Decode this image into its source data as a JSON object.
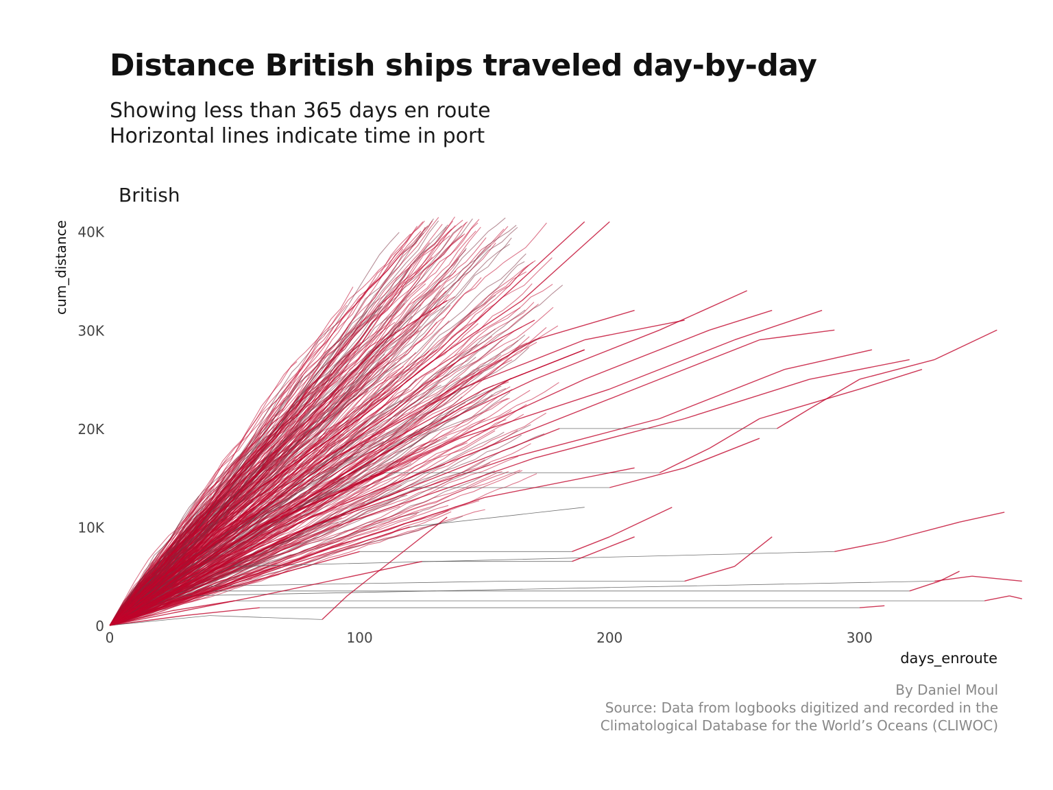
{
  "title": "Distance British ships traveled day-by-day",
  "subtitle": [
    "Showing less than 365 days en route",
    "Horizontal lines indicate time in port"
  ],
  "facet_label": "British",
  "caption": [
    "By Daniel Moul",
    "Source: Data from logbooks digitized and recorded in the",
    "Climatological Database for the World’s Oceans (CLIWOC)"
  ],
  "colors": {
    "line": "#c0042a",
    "port_line": "#555555",
    "axis_text": "#444444"
  },
  "chart_data": {
    "type": "line",
    "xlabel": "days_enroute",
    "ylabel": "cum_distance",
    "xlim": [
      0,
      370
    ],
    "ylim": [
      0,
      42000
    ],
    "x_ticks": [
      0,
      100,
      200,
      300
    ],
    "y_ticks": [
      0,
      10000,
      20000,
      30000,
      40000
    ],
    "x_tick_labels": [
      "0",
      "100",
      "200",
      "300"
    ],
    "y_tick_labels": [
      "0",
      "10K",
      "20K",
      "30K",
      "40K"
    ],
    "grid": false,
    "legend": "none",
    "series": [
      {
        "points": [
          [
            0,
            0
          ],
          [
            20,
            5000
          ],
          [
            50,
            13000
          ],
          [
            80,
            21000
          ],
          [
            110,
            29000
          ],
          [
            135,
            33000
          ]
        ]
      },
      {
        "points": [
          [
            0,
            0
          ],
          [
            30,
            7000
          ],
          [
            60,
            14000
          ],
          [
            100,
            21000
          ],
          [
            130,
            27000
          ],
          [
            160,
            34000
          ],
          [
            190,
            41000
          ]
        ]
      },
      {
        "points": [
          [
            0,
            0
          ],
          [
            30,
            7000
          ],
          [
            60,
            14000
          ],
          [
            100,
            21000
          ],
          [
            130,
            27000
          ],
          [
            165,
            33000
          ],
          [
            200,
            41000
          ]
        ]
      },
      {
        "points": [
          [
            0,
            0
          ],
          [
            40,
            8000
          ],
          [
            90,
            17000
          ],
          [
            130,
            23000
          ],
          [
            170,
            29000
          ],
          [
            210,
            32000
          ]
        ]
      },
      {
        "points": [
          [
            0,
            0
          ],
          [
            40,
            8000
          ],
          [
            90,
            17000
          ],
          [
            140,
            24000
          ],
          [
            190,
            29000
          ],
          [
            230,
            31000
          ]
        ]
      },
      {
        "points": [
          [
            0,
            0
          ],
          [
            60,
            10000
          ],
          [
            120,
            19000
          ],
          [
            170,
            25000
          ],
          [
            220,
            30000
          ],
          [
            255,
            34000
          ]
        ]
      },
      {
        "points": [
          [
            0,
            0
          ],
          [
            60,
            10000
          ],
          [
            130,
            18000
          ],
          [
            190,
            25000
          ],
          [
            240,
            30000
          ],
          [
            265,
            32000
          ]
        ]
      },
      {
        "points": [
          [
            0,
            0
          ],
          [
            70,
            11000
          ],
          [
            140,
            19000
          ],
          [
            200,
            24000
          ],
          [
            250,
            29000
          ],
          [
            285,
            32000
          ]
        ]
      },
      {
        "points": [
          [
            0,
            0
          ],
          [
            80,
            11000
          ],
          [
            150,
            18000
          ],
          [
            210,
            24000
          ],
          [
            260,
            29000
          ],
          [
            290,
            30000
          ]
        ]
      },
      {
        "points": [
          [
            0,
            0
          ],
          [
            80,
            10000
          ],
          [
            160,
            17000
          ],
          [
            220,
            21000
          ],
          [
            270,
            26000
          ],
          [
            305,
            28000
          ]
        ]
      },
      {
        "points": [
          [
            0,
            0
          ],
          [
            90,
            10000
          ],
          [
            170,
            17000
          ],
          [
            230,
            21000
          ],
          [
            280,
            25000
          ],
          [
            320,
            27000
          ]
        ]
      },
      {
        "points": [
          [
            0,
            0
          ],
          [
            40,
            7000
          ],
          [
            80,
            13000
          ],
          [
            120,
            19000
          ],
          [
            160,
            25000
          ],
          [
            190,
            28000
          ]
        ]
      },
      {
        "points": [
          [
            0,
            0
          ],
          [
            35,
            8000
          ],
          [
            75,
            15000
          ],
          [
            110,
            21000
          ],
          [
            140,
            27000
          ],
          [
            170,
            31000
          ]
        ]
      },
      {
        "points": [
          [
            0,
            0
          ],
          [
            50,
            9000
          ],
          [
            100,
            17000
          ],
          [
            150,
            24000
          ],
          [
            190,
            28000
          ]
        ]
      },
      {
        "points": [
          [
            0,
            0
          ],
          [
            30,
            5000
          ],
          [
            60,
            10000
          ],
          [
            110,
            15500
          ],
          [
            220,
            15500
          ],
          [
            240,
            18000
          ],
          [
            260,
            21000
          ],
          [
            300,
            24000
          ],
          [
            325,
            26000
          ]
        ]
      },
      {
        "points": [
          [
            0,
            0
          ],
          [
            40,
            5000
          ],
          [
            80,
            10000
          ],
          [
            180,
            20000
          ],
          [
            267,
            20000
          ],
          [
            280,
            22000
          ],
          [
            300,
            25000
          ],
          [
            330,
            27000
          ],
          [
            355,
            30000
          ]
        ]
      },
      {
        "points": [
          [
            0,
            0
          ],
          [
            30,
            4000
          ],
          [
            60,
            8000
          ],
          [
            120,
            14000
          ],
          [
            200,
            14000
          ],
          [
            230,
            16000
          ],
          [
            260,
            19000
          ]
        ]
      },
      {
        "points": [
          [
            0,
            0
          ],
          [
            50,
            4000
          ],
          [
            100,
            7500
          ],
          [
            185,
            7500
          ],
          [
            200,
            9000
          ],
          [
            225,
            12000
          ]
        ]
      },
      {
        "points": [
          [
            0,
            0
          ],
          [
            20,
            2000
          ],
          [
            40,
            4000
          ],
          [
            160,
            4500
          ],
          [
            230,
            4500
          ],
          [
            250,
            6000
          ],
          [
            265,
            9000
          ]
        ]
      },
      {
        "points": [
          [
            0,
            0
          ],
          [
            25,
            3000
          ],
          [
            50,
            6000
          ],
          [
            290,
            7500
          ],
          [
            310,
            8500
          ],
          [
            340,
            10500
          ],
          [
            358,
            11500
          ]
        ]
      },
      {
        "points": [
          [
            0,
            0
          ],
          [
            15,
            1500
          ],
          [
            30,
            3000
          ],
          [
            330,
            4500
          ],
          [
            345,
            5000
          ],
          [
            365,
            4500
          ]
        ]
      },
      {
        "points": [
          [
            0,
            0
          ],
          [
            20,
            2000
          ],
          [
            40,
            3500
          ],
          [
            320,
            3500
          ],
          [
            332,
            4500
          ],
          [
            340,
            5500
          ]
        ]
      },
      {
        "points": [
          [
            0,
            0
          ],
          [
            25,
            1500
          ],
          [
            50,
            2500
          ],
          [
            350,
            2500
          ],
          [
            360,
            3000
          ],
          [
            365,
            2700
          ]
        ]
      },
      {
        "points": [
          [
            0,
            0
          ],
          [
            30,
            1000
          ],
          [
            60,
            1800
          ],
          [
            300,
            1800
          ],
          [
            310,
            2000
          ]
        ]
      },
      {
        "points": [
          [
            0,
            0
          ],
          [
            40,
            1000
          ],
          [
            85,
            600
          ],
          [
            95,
            3000
          ],
          [
            115,
            7000
          ],
          [
            135,
            11000
          ]
        ]
      },
      {
        "points": [
          [
            0,
            0
          ],
          [
            60,
            3000
          ],
          [
            125,
            6500
          ],
          [
            185,
            6500
          ],
          [
            200,
            8000
          ],
          [
            210,
            9000
          ]
        ]
      },
      {
        "points": [
          [
            0,
            0
          ],
          [
            70,
            6000
          ],
          [
            120,
            10000
          ],
          [
            190,
            12000
          ]
        ]
      },
      {
        "points": [
          [
            0,
            0
          ],
          [
            90,
            8000
          ],
          [
            150,
            13000
          ],
          [
            210,
            16000
          ]
        ]
      }
    ]
  }
}
